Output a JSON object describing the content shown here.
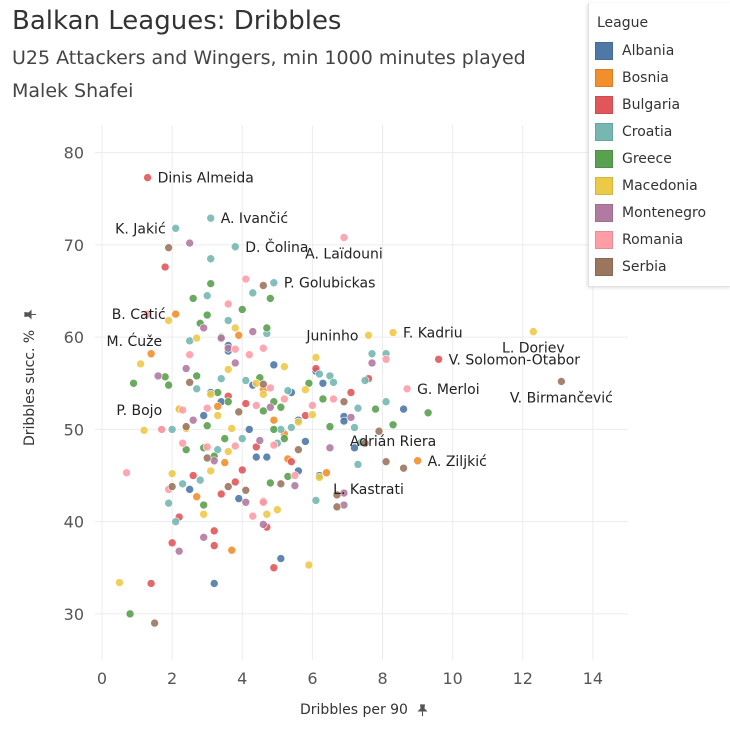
{
  "title": "Balkan Leagues: Dribbles",
  "subtitle_line1": "U25 Attackers and Wingers, min 1000 minutes played",
  "subtitle_line2": "Malek Shafei",
  "legend": {
    "title": "League",
    "items": [
      {
        "label": "Albania",
        "color": "#4e79a7"
      },
      {
        "label": "Bosnia",
        "color": "#f28e2b"
      },
      {
        "label": "Bulgaria",
        "color": "#e15759"
      },
      {
        "label": "Croatia",
        "color": "#76b7b2"
      },
      {
        "label": "Greece",
        "color": "#59a14f"
      },
      {
        "label": "Macedonia",
        "color": "#edc948"
      },
      {
        "label": "Montenegro",
        "color": "#b07aa1"
      },
      {
        "label": "Romania",
        "color": "#ff9da7"
      },
      {
        "label": "Serbia",
        "color": "#9c755f"
      }
    ]
  },
  "chart_data": {
    "type": "scatter",
    "title": "Balkan Leagues: Dribbles",
    "xlabel": "Dribbles per 90",
    "ylabel": "Dribbles succ. %",
    "xlim": [
      -0.2,
      15
    ],
    "ylim": [
      25,
      83
    ],
    "xticks": [
      0,
      2,
      4,
      6,
      8,
      10,
      12,
      14
    ],
    "yticks": [
      30,
      40,
      50,
      60,
      70,
      80
    ],
    "grid": true,
    "legend_position": "top-right",
    "series": [
      {
        "name": "Albania",
        "color": "#4e79a7",
        "points": [
          [
            3.1,
            54
          ],
          [
            3.6,
            58.5
          ],
          [
            4.3,
            54.8
          ],
          [
            4.9,
            57
          ],
          [
            5.4,
            54
          ],
          [
            6.1,
            56.3
          ],
          [
            6.3,
            55
          ],
          [
            6.9,
            51.4
          ],
          [
            7.2,
            48
          ],
          [
            8.6,
            52.2
          ],
          [
            4.2,
            50
          ],
          [
            5.8,
            48.7
          ],
          [
            3.4,
            53
          ],
          [
            4.7,
            47
          ],
          [
            5.6,
            45.5
          ],
          [
            6.2,
            45
          ],
          [
            3.2,
            33.3
          ],
          [
            2.9,
            51.5
          ],
          [
            2.5,
            43.5
          ],
          [
            3.9,
            42.5
          ],
          [
            5.1,
            36
          ],
          [
            5.6,
            51
          ],
          [
            4.4,
            47
          ],
          [
            6.9,
            50.9
          ],
          [
            3.6,
            59.1
          ]
        ]
      },
      {
        "name": "Bosnia",
        "color": "#f28e2b",
        "points": [
          [
            2.1,
            62.5
          ],
          [
            3.5,
            46.4
          ],
          [
            3.9,
            60.2
          ],
          [
            4.9,
            51
          ],
          [
            5.3,
            46.8
          ],
          [
            6.4,
            45.3
          ],
          [
            9.0,
            46.6
          ],
          [
            2.7,
            42.7
          ],
          [
            3.7,
            36.9
          ],
          [
            5.2,
            49.5
          ],
          [
            4.6,
            54.3
          ],
          [
            3.3,
            52.5
          ],
          [
            1.4,
            58.2
          ],
          [
            2.2,
            52.2
          ]
        ]
      },
      {
        "name": "Bulgaria",
        "color": "#e15759",
        "points": [
          [
            1.3,
            77.3
          ],
          [
            1.8,
            67.6
          ],
          [
            7.1,
            54
          ],
          [
            9.6,
            57.6
          ],
          [
            1.4,
            33.3
          ],
          [
            2.0,
            37.7
          ],
          [
            3.2,
            37.4
          ],
          [
            4.9,
            35
          ],
          [
            3.2,
            39
          ],
          [
            3.4,
            43
          ],
          [
            4.0,
            45.6
          ],
          [
            2.6,
            45
          ],
          [
            5.8,
            51.5
          ],
          [
            4.1,
            52.8
          ],
          [
            6.1,
            56.6
          ],
          [
            4.4,
            48.1
          ],
          [
            3.6,
            53.6
          ],
          [
            7.6,
            55.5
          ],
          [
            2.2,
            40.5
          ],
          [
            4.6,
            42.2
          ],
          [
            5.4,
            46.5
          ],
          [
            3.8,
            44.3
          ],
          [
            4.7,
            39.4
          ]
        ]
      },
      {
        "name": "Croatia",
        "color": "#76b7b2",
        "points": [
          [
            2.1,
            71.8
          ],
          [
            3.1,
            72.9
          ],
          [
            3.8,
            69.8
          ],
          [
            3.1,
            68.5
          ],
          [
            4.9,
            65.9
          ],
          [
            4.3,
            64.8
          ],
          [
            3.0,
            64.5
          ],
          [
            2.5,
            59.6
          ],
          [
            4.1,
            55.3
          ],
          [
            5.3,
            54.2
          ],
          [
            6.5,
            55.8
          ],
          [
            7.5,
            55.3
          ],
          [
            7.7,
            58.2
          ],
          [
            8.1,
            58.2
          ],
          [
            7.2,
            50.2
          ],
          [
            7.4,
            48.6
          ],
          [
            7.3,
            46.2
          ],
          [
            5.4,
            50.2
          ],
          [
            5.1,
            50
          ],
          [
            4.0,
            49
          ],
          [
            2.8,
            44.5
          ],
          [
            1.9,
            42
          ],
          [
            2.1,
            40
          ],
          [
            6.1,
            42.3
          ],
          [
            6.6,
            55.1
          ],
          [
            7.3,
            52.3
          ],
          [
            6.2,
            56
          ],
          [
            3.6,
            61.8
          ],
          [
            4.7,
            60.4
          ],
          [
            2.0,
            50
          ],
          [
            5.0,
            48.5
          ],
          [
            3.3,
            47.8
          ],
          [
            8.1,
            53
          ],
          [
            2.3,
            44.1
          ],
          [
            2.7,
            54.4
          ],
          [
            3.4,
            55.5
          ]
        ]
      },
      {
        "name": "Greece",
        "color": "#59a14f",
        "points": [
          [
            3.1,
            65.8
          ],
          [
            4.8,
            64.2
          ],
          [
            4.0,
            63
          ],
          [
            2.6,
            64.2
          ],
          [
            3.0,
            62.4
          ],
          [
            2.8,
            61.5
          ],
          [
            3.4,
            60
          ],
          [
            4.7,
            61
          ],
          [
            1.8,
            55.7
          ],
          [
            0.9,
            55
          ],
          [
            3.3,
            54
          ],
          [
            3.6,
            53
          ],
          [
            4.6,
            52
          ],
          [
            5.2,
            49
          ],
          [
            6.5,
            50.3
          ],
          [
            8.3,
            50.5
          ],
          [
            9.3,
            51.8
          ],
          [
            7.8,
            52.2
          ],
          [
            5.1,
            52.4
          ],
          [
            6.3,
            53.3
          ],
          [
            2.9,
            48
          ],
          [
            3.0,
            50.4
          ],
          [
            2.7,
            55.8
          ],
          [
            2.9,
            41.8
          ],
          [
            4.8,
            44.2
          ],
          [
            5.3,
            44.9
          ],
          [
            0.8,
            30
          ],
          [
            4.5,
            55.6
          ],
          [
            5.9,
            55
          ],
          [
            4.9,
            53
          ],
          [
            3.2,
            47.1
          ],
          [
            2.4,
            47.8
          ],
          [
            4.9,
            50
          ],
          [
            1.9,
            54.8
          ],
          [
            3.5,
            49
          ]
        ]
      },
      {
        "name": "Macedonia",
        "color": "#edc948",
        "points": [
          [
            7.6,
            60.2
          ],
          [
            8.3,
            60.5
          ],
          [
            12.3,
            60.6
          ],
          [
            2.7,
            59.9
          ],
          [
            3.8,
            61
          ],
          [
            1.9,
            61.8
          ],
          [
            1.1,
            57.1
          ],
          [
            3.6,
            56.5
          ],
          [
            3.1,
            53.8
          ],
          [
            4.4,
            55
          ],
          [
            5.2,
            56.8
          ],
          [
            5.6,
            50.8
          ],
          [
            6.0,
            51.6
          ],
          [
            4.6,
            53.8
          ],
          [
            3.3,
            51.5
          ],
          [
            2.2,
            52.2
          ],
          [
            1.2,
            49.9
          ],
          [
            3.1,
            45.5
          ],
          [
            3.6,
            47.6
          ],
          [
            5.0,
            41.3
          ],
          [
            5.9,
            35.3
          ],
          [
            0.5,
            33.4
          ],
          [
            6.2,
            44.8
          ],
          [
            2.9,
            40.8
          ],
          [
            4.7,
            40.8
          ],
          [
            5.8,
            54.3
          ],
          [
            3.7,
            50.1
          ],
          [
            2.4,
            50.1
          ],
          [
            6.1,
            57.8
          ],
          [
            2.0,
            45.2
          ]
        ]
      },
      {
        "name": "Montenegro",
        "color": "#b07aa1",
        "points": [
          [
            2.5,
            70.2
          ],
          [
            4.3,
            60.6
          ],
          [
            3.4,
            59.9
          ],
          [
            3.6,
            58.8
          ],
          [
            2.9,
            61
          ],
          [
            7.7,
            57.2
          ],
          [
            1.6,
            55.8
          ],
          [
            1.7,
            50
          ],
          [
            4.5,
            48.8
          ],
          [
            4.6,
            39.7
          ],
          [
            4.1,
            42.1
          ],
          [
            2.9,
            38.3
          ],
          [
            2.2,
            36.8
          ],
          [
            2.4,
            56.6
          ],
          [
            6.9,
            41.8
          ],
          [
            6.9,
            43.1
          ],
          [
            7.1,
            51.3
          ],
          [
            4.8,
            52.4
          ],
          [
            6.5,
            48
          ],
          [
            3.8,
            57.2
          ],
          [
            3.2,
            46.6
          ],
          [
            5.5,
            43.9
          ],
          [
            2.6,
            51
          ]
        ]
      },
      {
        "name": "Romania",
        "color": "#ff9da7",
        "points": [
          [
            6.9,
            70.8
          ],
          [
            4.1,
            66.3
          ],
          [
            1.3,
            62.5
          ],
          [
            3.6,
            63.6
          ],
          [
            4.6,
            58.8
          ],
          [
            3.8,
            58.7
          ],
          [
            2.5,
            58.1
          ],
          [
            4.2,
            58.1
          ],
          [
            8.1,
            57.6
          ],
          [
            8.7,
            54.4
          ],
          [
            6.0,
            52.6
          ],
          [
            5.2,
            53.3
          ],
          [
            4.8,
            54.5
          ],
          [
            3.0,
            52.3
          ],
          [
            2.3,
            52.1
          ],
          [
            1.7,
            50
          ],
          [
            2.3,
            48.5
          ],
          [
            3.0,
            48.1
          ],
          [
            4.9,
            48.3
          ],
          [
            0.7,
            45.3
          ],
          [
            1.9,
            43.5
          ],
          [
            4.3,
            40.6
          ],
          [
            5.5,
            45
          ],
          [
            4.6,
            42.1
          ],
          [
            6.6,
            53.3
          ],
          [
            4.4,
            52.6
          ],
          [
            3.8,
            48.2
          ]
        ]
      },
      {
        "name": "Serbia",
        "color": "#9c755f",
        "points": [
          [
            1.9,
            69.7
          ],
          [
            4.6,
            65.6
          ],
          [
            13.1,
            55.2
          ],
          [
            8.6,
            45.8
          ],
          [
            8.1,
            46.5
          ],
          [
            7.5,
            48.5
          ],
          [
            6.7,
            41.6
          ],
          [
            6.7,
            42.9
          ],
          [
            5.1,
            44.1
          ],
          [
            4.1,
            43.4
          ],
          [
            2.5,
            55.1
          ],
          [
            1.5,
            29
          ],
          [
            2.0,
            43.8
          ],
          [
            6.9,
            53
          ],
          [
            3.9,
            51.9
          ],
          [
            7.9,
            49.8
          ],
          [
            5.6,
            47.8
          ],
          [
            4.6,
            54.9
          ],
          [
            3.0,
            46.9
          ],
          [
            3.6,
            43.8
          ],
          [
            2.4,
            50.3
          ]
        ]
      }
    ],
    "annotations": [
      {
        "text": "Dinis Almeida",
        "x": 1.3,
        "y": 77.3,
        "anchor": "start"
      },
      {
        "text": "A. Ivančić",
        "x": 3.1,
        "y": 72.9,
        "anchor": "start"
      },
      {
        "text": "K. Jakić",
        "x": 2.1,
        "y": 71.8,
        "anchor": "end"
      },
      {
        "text": "D. Čolina",
        "x": 3.8,
        "y": 69.8,
        "anchor": "start"
      },
      {
        "text": "A. Laïdouni",
        "x": 6.9,
        "y": 70.8,
        "anchor": "middle"
      },
      {
        "text": "P. Golubickas",
        "x": 4.9,
        "y": 65.9,
        "anchor": "start"
      },
      {
        "text": "B. Catić",
        "x": 2.1,
        "y": 62.5,
        "anchor": "end"
      },
      {
        "text": "M. Ćuže",
        "x": 2.0,
        "y": 59.6,
        "anchor": "end"
      },
      {
        "text": "Juninho",
        "x": 7.6,
        "y": 60.2,
        "anchor": "end"
      },
      {
        "text": "F. Kadriu",
        "x": 8.3,
        "y": 60.5,
        "anchor": "start"
      },
      {
        "text": "L. Doriev",
        "x": 12.3,
        "y": 60.6,
        "anchor": "middle"
      },
      {
        "text": "V. Solomon-Otabor",
        "x": 9.6,
        "y": 57.6,
        "anchor": "start"
      },
      {
        "text": "G. Merloi",
        "x": 8.7,
        "y": 54.4,
        "anchor": "start"
      },
      {
        "text": "V. Birmančević",
        "x": 13.1,
        "y": 55.2,
        "anchor": "middle"
      },
      {
        "text": "P. Bojo",
        "x": 2.0,
        "y": 52.1,
        "anchor": "end"
      },
      {
        "text": "Adrián Riera",
        "x": 8.3,
        "y": 50.5,
        "anchor": "middle"
      },
      {
        "text": "A. Ziljkić",
        "x": 9.0,
        "y": 46.6,
        "anchor": "start"
      },
      {
        "text": "L. Kastrati",
        "x": 7.6,
        "y": 45.3,
        "anchor": "middle"
      }
    ]
  }
}
